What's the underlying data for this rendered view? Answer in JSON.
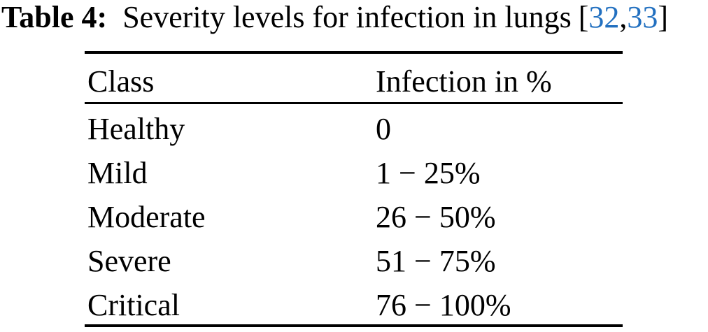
{
  "caption": {
    "label": "Table 4:",
    "text": "Severity levels for infection in lungs",
    "citation": {
      "open": "[",
      "refs": [
        "32",
        "33"
      ],
      "separator": ",",
      "close": "]"
    }
  },
  "table": {
    "columns": [
      "Class",
      "Infection in %"
    ],
    "rows": [
      {
        "class": "Healthy",
        "infection": "0"
      },
      {
        "class": "Mild",
        "infection": "1 − 25%"
      },
      {
        "class": "Moderate",
        "infection": "26 − 50%"
      },
      {
        "class": "Severe",
        "infection": "51 − 75%"
      },
      {
        "class": "Critical",
        "infection": "76 − 100%"
      }
    ]
  },
  "colors": {
    "text": "#000000",
    "citation_link": "#2270c0",
    "rule": "#000000",
    "background": "#ffffff"
  }
}
